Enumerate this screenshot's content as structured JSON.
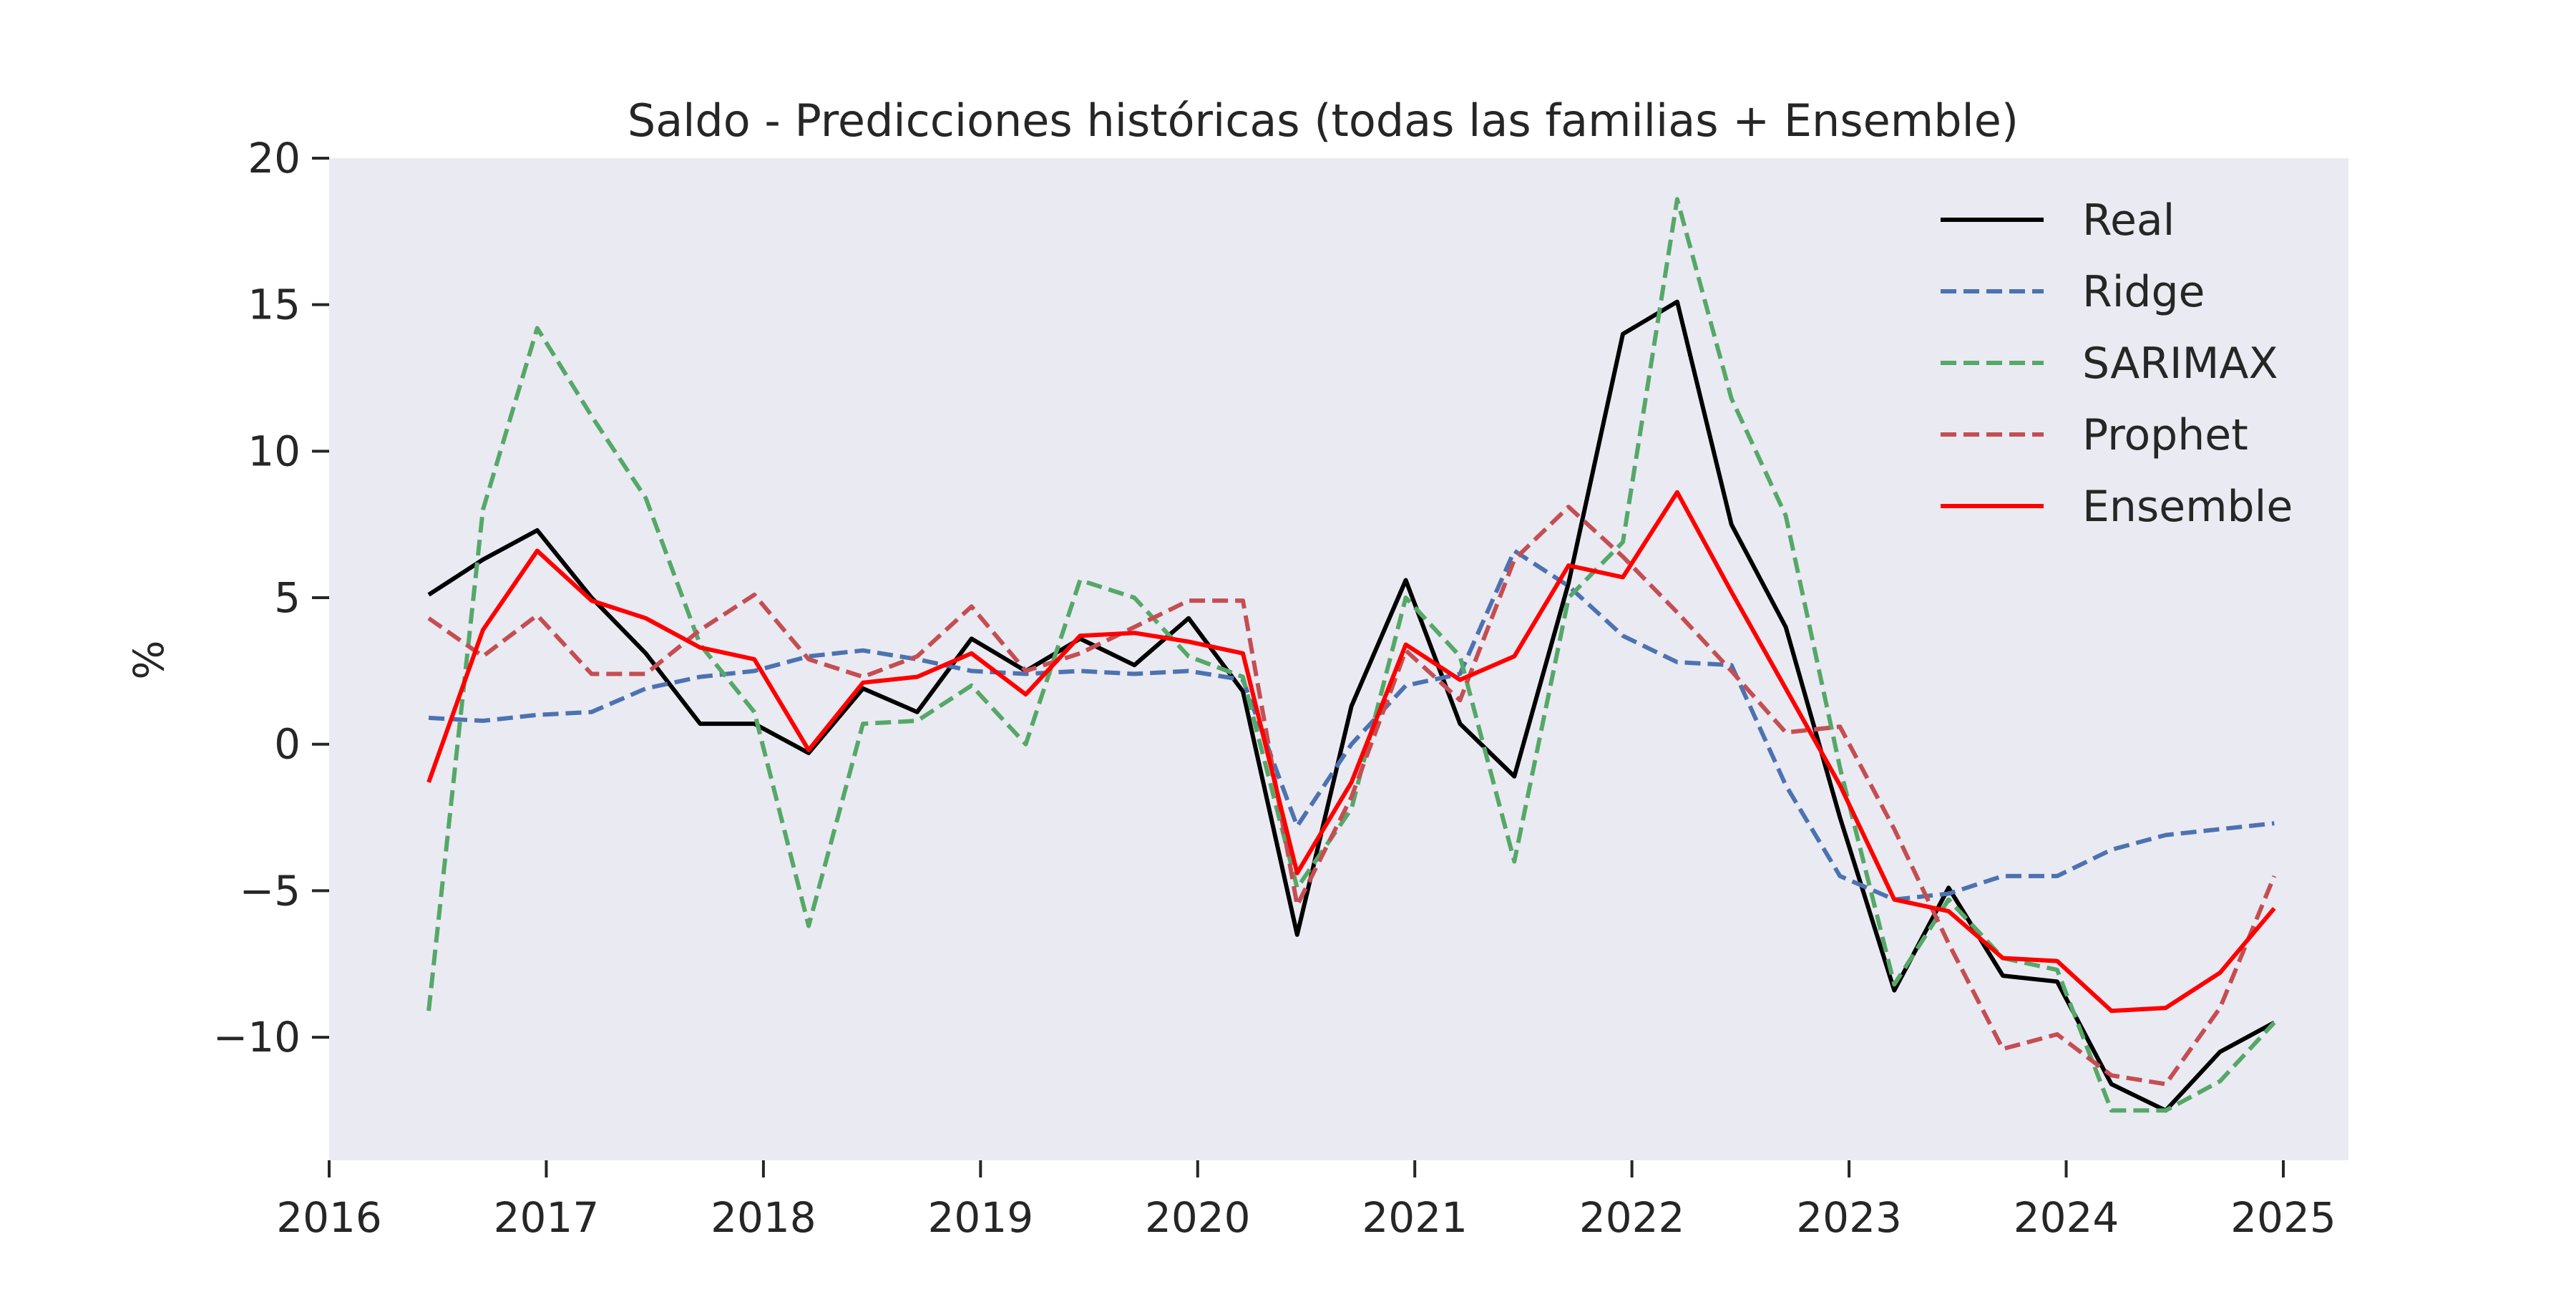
{
  "chart_data": {
    "type": "line",
    "title": "Saldo - Predicciones históricas (todas las familias + Ensemble)",
    "xlabel": "",
    "ylabel": "%",
    "x_axis": {
      "min": 2016.0,
      "max": 2025.3,
      "ticks": [
        "2016",
        "2017",
        "2018",
        "2019",
        "2020",
        "2021",
        "2022",
        "2023",
        "2024",
        "2025"
      ]
    },
    "y_axis": {
      "min": -14.2,
      "max": 20.0,
      "ticks": [
        "−10",
        "−5",
        "0",
        "5",
        "10",
        "15",
        "20"
      ],
      "tick_values": [
        -10,
        -5,
        0,
        5,
        10,
        15,
        20
      ]
    },
    "grid": false,
    "background": "#eaeaf2",
    "legend_position": "top-right",
    "x": [
      "2016-06",
      "2016-09",
      "2016-12",
      "2017-03",
      "2017-06",
      "2017-09",
      "2017-12",
      "2018-03",
      "2018-06",
      "2018-09",
      "2018-12",
      "2019-03",
      "2019-06",
      "2019-09",
      "2019-12",
      "2020-03",
      "2020-06",
      "2020-09",
      "2020-12",
      "2021-03",
      "2021-06",
      "2021-09",
      "2021-12",
      "2022-03",
      "2022-06",
      "2022-09",
      "2022-12",
      "2023-03",
      "2023-06",
      "2023-09",
      "2023-12",
      "2024-03",
      "2024-06",
      "2024-09",
      "2024-12"
    ],
    "series": [
      {
        "name": "Real",
        "color": "#000000",
        "dash": "solid",
        "values": [
          5.1,
          6.3,
          7.3,
          5.0,
          3.1,
          0.7,
          0.7,
          -0.3,
          1.9,
          1.1,
          3.6,
          2.5,
          3.6,
          2.7,
          4.3,
          1.8,
          -6.5,
          1.3,
          5.6,
          0.7,
          -1.1,
          5.5,
          14.0,
          15.1,
          7.5,
          4.0,
          -2.5,
          -8.4,
          -4.9,
          -7.9,
          -8.1,
          -11.6,
          -12.5,
          -10.5,
          -9.5
        ]
      },
      {
        "name": "Ridge",
        "color": "#4c72b0",
        "dash": "dashed",
        "values": [
          0.9,
          0.8,
          1.0,
          1.1,
          1.9,
          2.3,
          2.5,
          3.0,
          3.2,
          2.9,
          2.5,
          2.4,
          2.5,
          2.4,
          2.5,
          2.2,
          -2.8,
          0.0,
          2.0,
          2.4,
          6.6,
          5.4,
          3.7,
          2.8,
          2.7,
          -1.4,
          -4.5,
          -5.3,
          -5.1,
          -4.5,
          -4.5,
          -3.6,
          -3.1,
          -2.9,
          -2.7
        ]
      },
      {
        "name": "SARIMAX",
        "color": "#55a868",
        "dash": "dashed",
        "values": [
          -9.1,
          8.0,
          14.2,
          11.2,
          8.4,
          3.4,
          1.1,
          -6.2,
          0.7,
          0.8,
          2.0,
          0.0,
          5.6,
          5.0,
          3.0,
          2.3,
          -4.9,
          -2.2,
          5.0,
          3.0,
          -4.0,
          5.0,
          6.9,
          18.6,
          11.8,
          7.8,
          -0.8,
          -8.2,
          -5.3,
          -7.3,
          -7.7,
          -12.5,
          -12.5,
          -11.5,
          -9.5
        ]
      },
      {
        "name": "Prophet",
        "color": "#c44e52",
        "dash": "dashed",
        "values": [
          4.3,
          3.0,
          4.4,
          2.4,
          2.4,
          3.9,
          5.1,
          2.9,
          2.3,
          3.0,
          4.7,
          2.5,
          3.1,
          4.0,
          4.9,
          4.9,
          -5.5,
          -1.8,
          3.2,
          1.5,
          6.3,
          8.1,
          6.4,
          4.5,
          2.5,
          0.4,
          0.6,
          -2.9,
          -6.8,
          -10.4,
          -9.9,
          -11.3,
          -11.6,
          -9.0,
          -4.5
        ]
      },
      {
        "name": "Ensemble",
        "color": "#ff0000",
        "dash": "solid",
        "values": [
          -1.3,
          3.9,
          6.6,
          4.9,
          4.3,
          3.3,
          2.9,
          -0.2,
          2.1,
          2.3,
          3.1,
          1.7,
          3.7,
          3.8,
          3.5,
          3.1,
          -4.4,
          -1.3,
          3.4,
          2.2,
          3.0,
          6.1,
          5.7,
          8.6,
          5.2,
          1.9,
          -1.4,
          -5.3,
          -5.7,
          -7.3,
          -7.4,
          -9.1,
          -9.0,
          -7.8,
          -5.6
        ]
      }
    ]
  }
}
